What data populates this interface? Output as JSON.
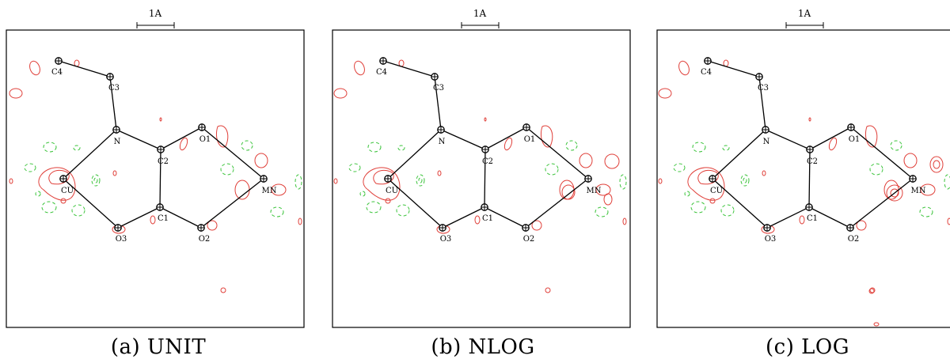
{
  "scale_bar_label": "1A",
  "panels": [
    {
      "caption": "(a) UNIT"
    },
    {
      "caption": "(b) NLOG"
    },
    {
      "caption": "(c) LOG"
    }
  ],
  "atoms": [
    {
      "id": "C4",
      "label": "C4"
    },
    {
      "id": "C3",
      "label": "C3"
    },
    {
      "id": "N",
      "label": "N"
    },
    {
      "id": "C2",
      "label": "C2"
    },
    {
      "id": "O1",
      "label": "O1"
    },
    {
      "id": "MN",
      "label": "MN"
    },
    {
      "id": "CU",
      "label": "CU"
    },
    {
      "id": "C1",
      "label": "C1"
    },
    {
      "id": "O3",
      "label": "O3"
    },
    {
      "id": "O2",
      "label": "O2"
    }
  ],
  "bonds": [
    [
      "C4",
      "C3"
    ],
    [
      "C3",
      "N"
    ],
    [
      "N",
      "C2"
    ],
    [
      "N",
      "CU"
    ],
    [
      "C2",
      "O1"
    ],
    [
      "O1",
      "MN"
    ],
    [
      "C2",
      "C1"
    ],
    [
      "CU",
      "O3"
    ],
    [
      "O3",
      "C1"
    ],
    [
      "C1",
      "O2"
    ],
    [
      "O2",
      "MN"
    ]
  ],
  "colors": {
    "positive_contour": "#e0403a",
    "negative_contour": "#3cc43c",
    "structure": "#000000"
  }
}
